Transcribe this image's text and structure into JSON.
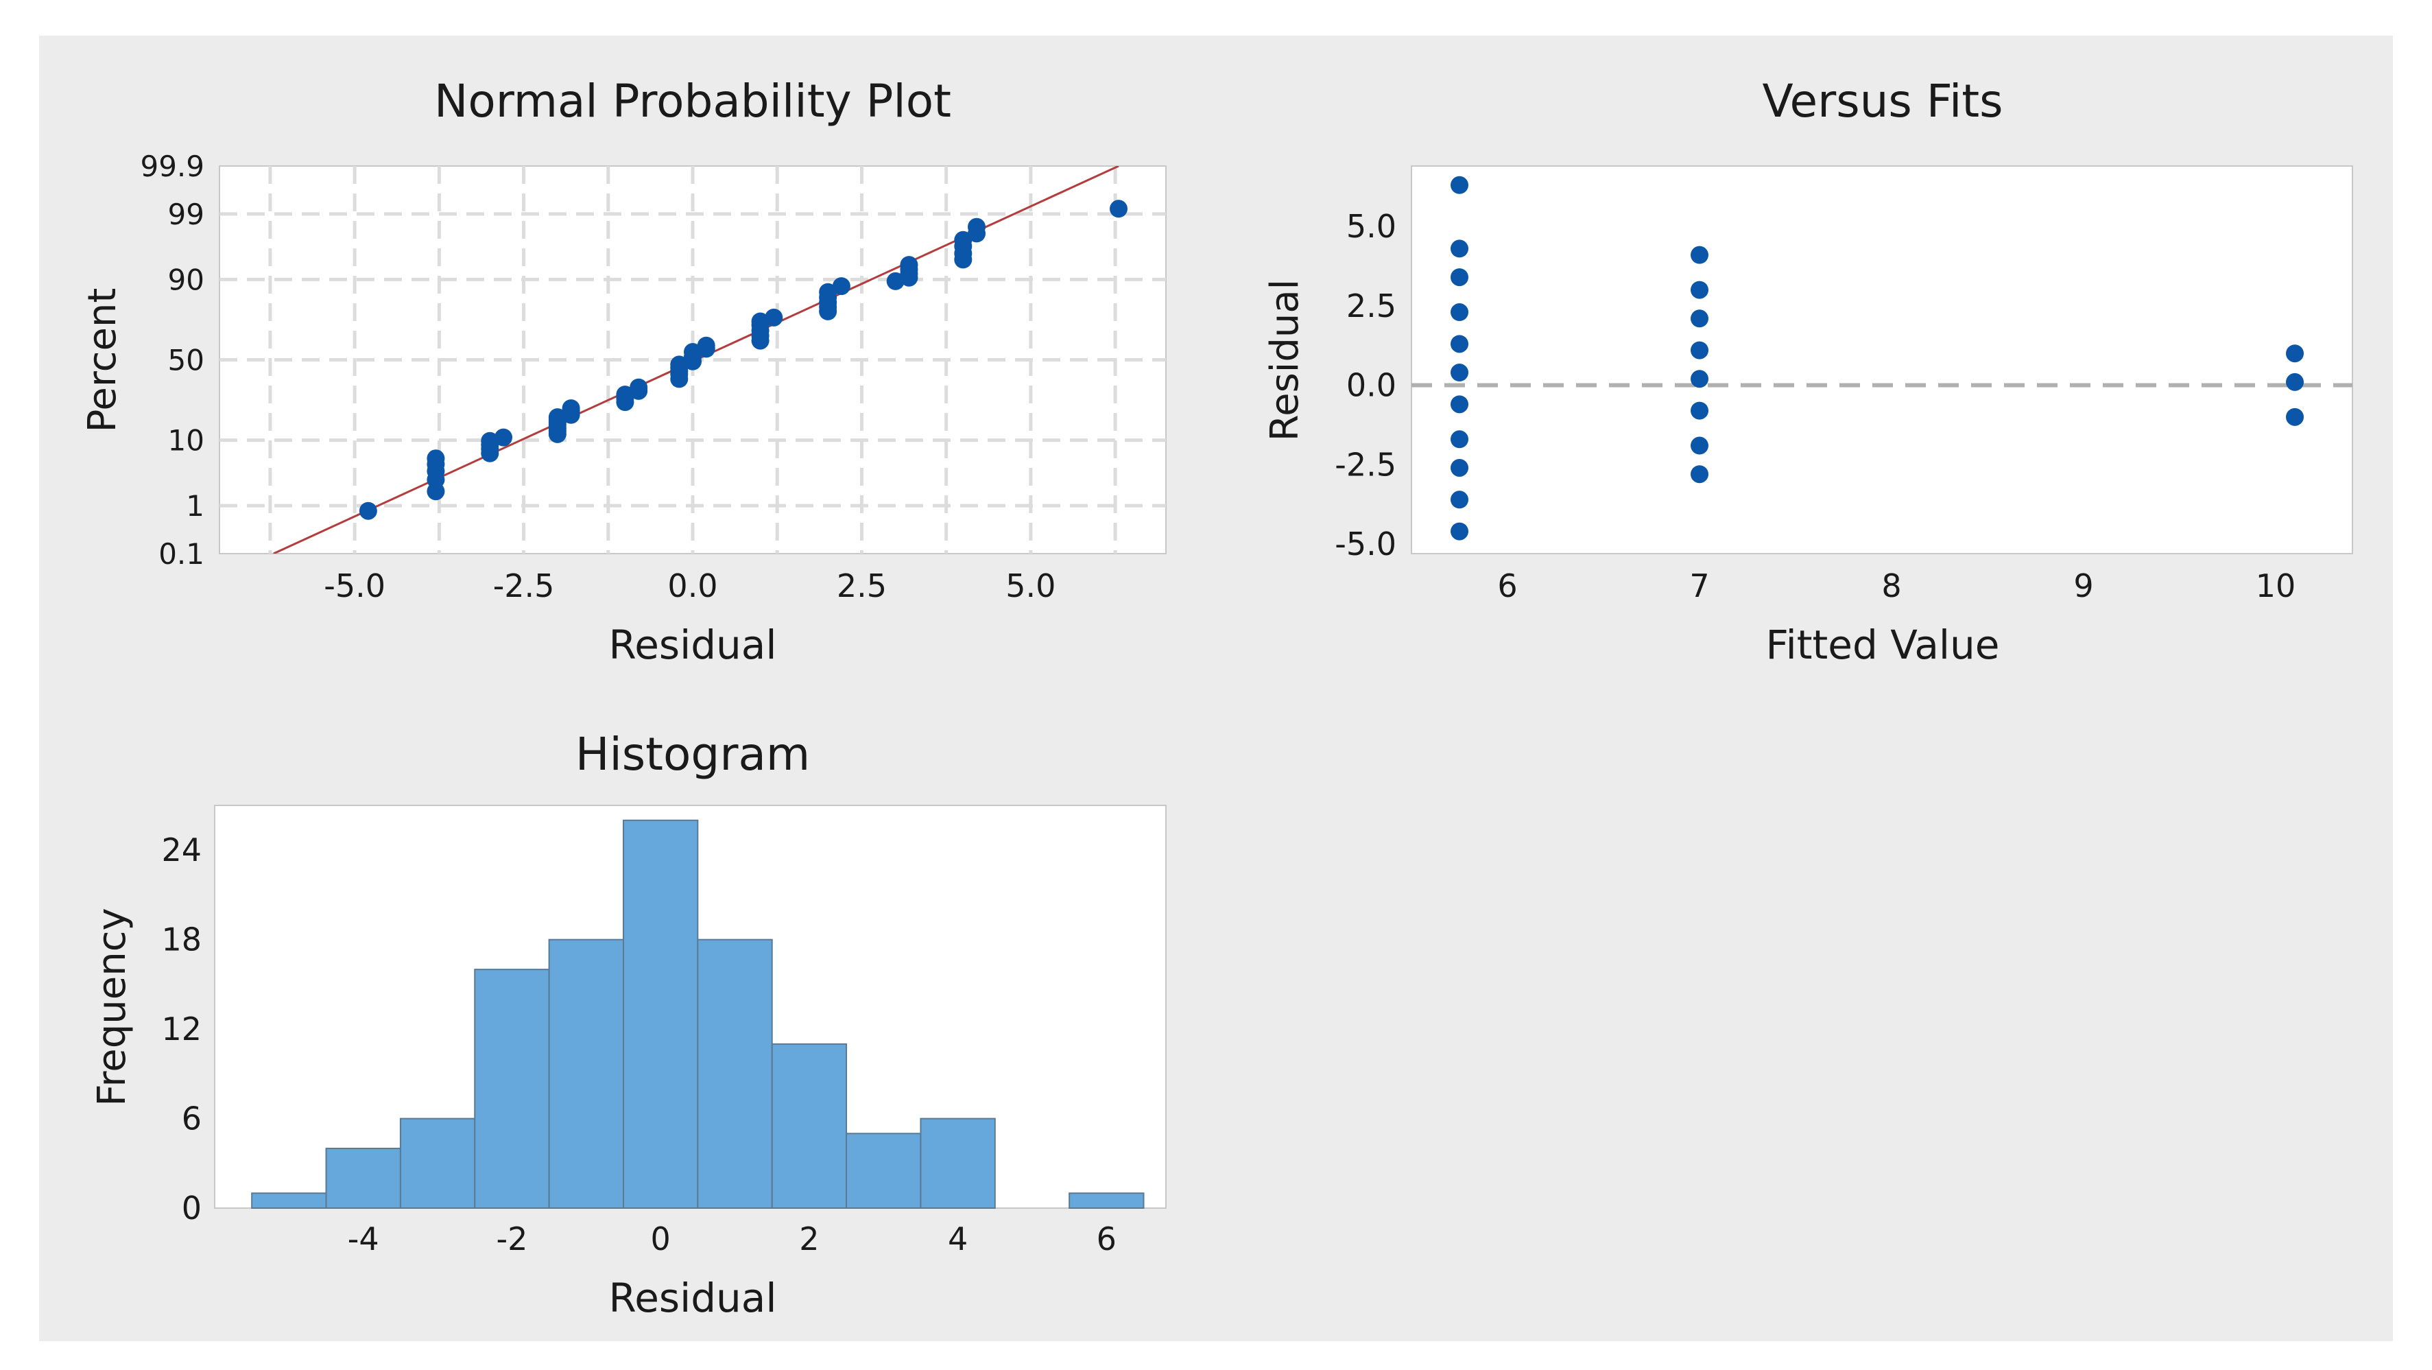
{
  "figure": {
    "background": "#ececec",
    "plot_background": "#ffffff",
    "marker_color": "#0b56a8",
    "bar_color": "#67a8dc",
    "fit_line_color": "#b43c3c",
    "reference_line_color": "#b0b0b0"
  },
  "chart_data": [
    {
      "id": "probability",
      "type": "scatter",
      "title": "Normal Probability Plot",
      "xlabel": "Residual",
      "ylabel": "Percent",
      "xlim": [
        -7.0,
        7.0
      ],
      "xticks": [
        -5.0,
        -2.5,
        0.0,
        2.5,
        5.0
      ],
      "xtick_labels": [
        "-5.0",
        "-2.5",
        "0.0",
        "2.5",
        "5.0"
      ],
      "yscale": "normal-probability",
      "ylim": [
        0.1,
        99.9
      ],
      "yticks": [
        0.1,
        1,
        10,
        50,
        90,
        99,
        99.9
      ],
      "ytick_labels": [
        "0.1",
        "1",
        "10",
        "50",
        "90",
        "99",
        "99.9"
      ],
      "grid": true,
      "fit_line": {
        "x": [
          -6.2,
          6.3
        ],
        "y": [
          0.1,
          99.9
        ]
      },
      "points": [
        [
          -4.8,
          0.8
        ],
        [
          -3.8,
          1.8
        ],
        [
          -3.8,
          2.8
        ],
        [
          -3.8,
          3.8
        ],
        [
          -3.8,
          4.8
        ],
        [
          -3.8,
          5.8
        ],
        [
          -3.0,
          6.8
        ],
        [
          -3.0,
          7.8
        ],
        [
          -3.0,
          8.8
        ],
        [
          -3.0,
          9.8
        ],
        [
          -2.8,
          10.8
        ],
        [
          -2.0,
          11.8
        ],
        [
          -2.0,
          12.8
        ],
        [
          -2.0,
          13.8
        ],
        [
          -2.0,
          15.0
        ],
        [
          -2.0,
          16.0
        ],
        [
          -2.0,
          17.0
        ],
        [
          -2.0,
          18.0
        ],
        [
          -1.8,
          19.0
        ],
        [
          -1.8,
          20.0
        ],
        [
          -1.8,
          21.0
        ],
        [
          -1.8,
          22.0
        ],
        [
          -1.0,
          25.0
        ],
        [
          -1.0,
          27.0
        ],
        [
          -1.0,
          29.0
        ],
        [
          -0.8,
          31.0
        ],
        [
          -0.8,
          33.0
        ],
        [
          -0.2,
          38.0
        ],
        [
          -0.2,
          41.0
        ],
        [
          -0.2,
          43.0
        ],
        [
          -0.2,
          45.0
        ],
        [
          -0.2,
          47.0
        ],
        [
          0.0,
          49.0
        ],
        [
          0.0,
          52.0
        ],
        [
          0.0,
          55.0
        ],
        [
          0.2,
          57.0
        ],
        [
          0.2,
          59.0
        ],
        [
          1.0,
          62.0
        ],
        [
          1.0,
          65.0
        ],
        [
          1.0,
          68.0
        ],
        [
          1.0,
          71.0
        ],
        [
          1.0,
          73.0
        ],
        [
          1.2,
          75.0
        ],
        [
          2.0,
          78.0
        ],
        [
          2.0,
          80.0
        ],
        [
          2.0,
          82.0
        ],
        [
          2.0,
          84.0
        ],
        [
          2.0,
          86.0
        ],
        [
          2.2,
          88.0
        ],
        [
          3.0,
          89.5
        ],
        [
          3.2,
          90.5
        ],
        [
          3.2,
          91.5
        ],
        [
          3.2,
          92.5
        ],
        [
          3.2,
          93.5
        ],
        [
          4.0,
          94.5
        ],
        [
          4.0,
          95.5
        ],
        [
          4.0,
          96.5
        ],
        [
          4.0,
          97.2
        ],
        [
          4.2,
          97.8
        ],
        [
          4.2,
          98.3
        ],
        [
          6.3,
          99.2
        ]
      ]
    },
    {
      "id": "fits",
      "type": "scatter",
      "title": "Versus Fits",
      "xlabel": "Fitted Value",
      "ylabel": "Residual",
      "xlim": [
        5.5,
        10.4
      ],
      "ylim": [
        -5.3,
        6.9
      ],
      "xticks": [
        6,
        7,
        8,
        9,
        10
      ],
      "xtick_labels": [
        "6",
        "7",
        "8",
        "9",
        "10"
      ],
      "yticks": [
        -5.0,
        -2.5,
        0.0,
        2.5,
        5.0
      ],
      "ytick_labels": [
        "-5.0",
        "-2.5",
        "0.0",
        "2.5",
        "5.0"
      ],
      "reference_line_y": 0.0,
      "grid": false,
      "points": [
        [
          5.75,
          6.3
        ],
        [
          5.75,
          4.3
        ],
        [
          5.75,
          3.4
        ],
        [
          5.75,
          2.3
        ],
        [
          5.75,
          1.3
        ],
        [
          5.75,
          0.4
        ],
        [
          5.75,
          -0.6
        ],
        [
          5.75,
          -1.7
        ],
        [
          5.75,
          -2.6
        ],
        [
          5.75,
          -3.6
        ],
        [
          5.75,
          -4.6
        ],
        [
          7.0,
          4.1
        ],
        [
          7.0,
          3.0
        ],
        [
          7.0,
          2.1
        ],
        [
          7.0,
          1.1
        ],
        [
          7.0,
          0.2
        ],
        [
          7.0,
          -0.8
        ],
        [
          7.0,
          -1.9
        ],
        [
          7.0,
          -2.8
        ],
        [
          10.1,
          1.0
        ],
        [
          10.1,
          0.1
        ],
        [
          10.1,
          -1.0
        ]
      ]
    },
    {
      "id": "histogram",
      "type": "bar",
      "title": "Histogram",
      "xlabel": "Residual",
      "ylabel": "Frequency",
      "xlim": [
        -6.0,
        6.8
      ],
      "ylim": [
        0,
        27
      ],
      "xticks": [
        -4,
        -2,
        0,
        2,
        4,
        6
      ],
      "xtick_labels": [
        "-4",
        "-2",
        "0",
        "2",
        "4",
        "6"
      ],
      "yticks": [
        0,
        6,
        12,
        18,
        24
      ],
      "ytick_labels": [
        "0",
        "6",
        "12",
        "18",
        "24"
      ],
      "grid": false,
      "bins": [
        {
          "center": -5,
          "count": 1
        },
        {
          "center": -4,
          "count": 4
        },
        {
          "center": -3,
          "count": 6
        },
        {
          "center": -2,
          "count": 16
        },
        {
          "center": -1,
          "count": 18
        },
        {
          "center": 0,
          "count": 26
        },
        {
          "center": 1,
          "count": 18
        },
        {
          "center": 2,
          "count": 11
        },
        {
          "center": 3,
          "count": 5
        },
        {
          "center": 4,
          "count": 6
        },
        {
          "center": 5,
          "count": 0
        },
        {
          "center": 6,
          "count": 1
        }
      ],
      "bin_width": 1
    }
  ]
}
